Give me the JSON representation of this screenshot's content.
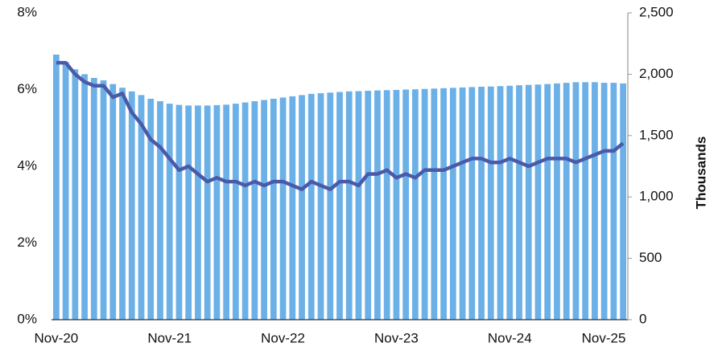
{
  "chart_data": {
    "type": "bar_line",
    "y_title": "Thousands",
    "categories": [
      "Nov-20",
      null,
      null,
      null,
      null,
      null,
      null,
      null,
      null,
      null,
      null,
      null,
      "Nov-21",
      null,
      null,
      null,
      null,
      null,
      null,
      null,
      null,
      null,
      null,
      null,
      "Nov-22",
      null,
      null,
      null,
      null,
      null,
      null,
      null,
      null,
      null,
      null,
      null,
      "Nov-23",
      null,
      null,
      null,
      null,
      null,
      null,
      null,
      null,
      null,
      null,
      null,
      "Nov-24",
      null,
      null,
      null,
      null,
      null,
      null,
      null,
      null,
      null,
      null,
      null,
      "Nov-25"
    ],
    "series": [
      {
        "type": "bar",
        "axis": "y2",
        "color": "#6cb0e8",
        "values": [
          2160,
          2100,
          2040,
          2000,
          1970,
          1950,
          1920,
          1890,
          1860,
          1830,
          1800,
          1780,
          1760,
          1750,
          1745,
          1745,
          1745,
          1748,
          1752,
          1760,
          1770,
          1780,
          1790,
          1800,
          1810,
          1820,
          1830,
          1840,
          1845,
          1850,
          1855,
          1860,
          1862,
          1865,
          1868,
          1870,
          1872,
          1875,
          1877,
          1880,
          1883,
          1886,
          1889,
          1892,
          1895,
          1898,
          1900,
          1903,
          1906,
          1910,
          1913,
          1916,
          1920,
          1925,
          1930,
          1935,
          1935,
          1935,
          1930,
          1930,
          1925
        ]
      },
      {
        "type": "line",
        "axis": "y",
        "color": "#4a5aa8",
        "values": [
          6.7,
          6.7,
          6.4,
          6.2,
          6.1,
          6.1,
          5.8,
          5.9,
          5.4,
          5.1,
          4.7,
          4.5,
          4.2,
          3.9,
          4.0,
          3.8,
          3.6,
          3.7,
          3.6,
          3.6,
          3.5,
          3.6,
          3.5,
          3.6,
          3.6,
          3.5,
          3.4,
          3.6,
          3.5,
          3.4,
          3.6,
          3.6,
          3.5,
          3.8,
          3.8,
          3.9,
          3.7,
          3.8,
          3.7,
          3.9,
          3.9,
          3.9,
          4.0,
          4.1,
          4.2,
          4.2,
          4.1,
          4.1,
          4.2,
          4.1,
          4.0,
          4.1,
          4.2,
          4.2,
          4.2,
          4.1,
          4.2,
          4.3,
          4.4,
          4.4,
          4.6
        ]
      }
    ],
    "ylim": [
      0,
      8
    ],
    "yticks": [
      {
        "value": 0,
        "label": "0%"
      },
      {
        "value": 2,
        "label": "2%"
      },
      {
        "value": 4,
        "label": "4%"
      },
      {
        "value": 6,
        "label": "6%"
      },
      {
        "value": 8,
        "label": "8%"
      }
    ],
    "y2lim": [
      0,
      2500
    ],
    "y2ticks": [
      0,
      500,
      {
        "value": 1000,
        "label": "1,000"
      },
      {
        "value": 1500,
        "label": "1,500"
      },
      {
        "value": 2000,
        "label": "2,000"
      },
      {
        "value": 2500,
        "label": "2,500"
      }
    ]
  }
}
